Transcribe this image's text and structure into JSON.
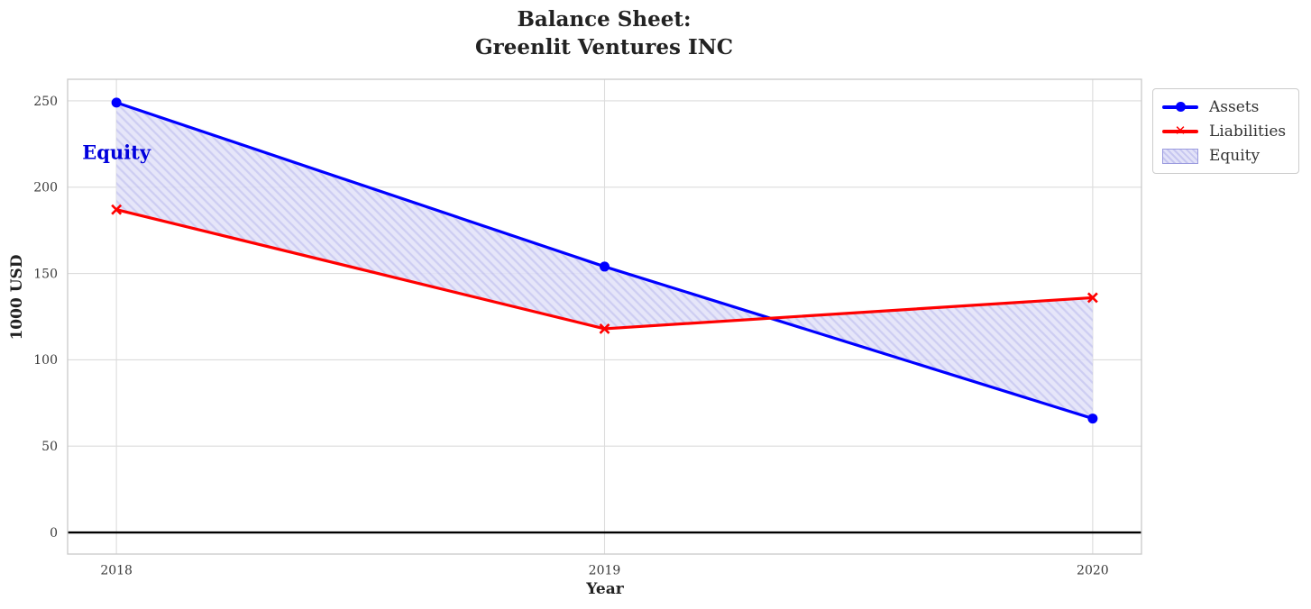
{
  "chart_data": {
    "type": "line",
    "title": "Balance Sheet:\nGreenlit Ventures INC",
    "xlabel": "Year",
    "ylabel": "1000 USD",
    "x": [
      2018,
      2019,
      2020
    ],
    "xticklabels": [
      "2018",
      "2019",
      "2020"
    ],
    "series": [
      {
        "name": "Assets",
        "values": [
          249,
          154,
          66
        ],
        "color": "#0000ff",
        "marker": "circle"
      },
      {
        "name": "Liabilities",
        "values": [
          187,
          118,
          136
        ],
        "color": "#ff0000",
        "marker": "x"
      }
    ],
    "fill_between": {
      "name": "Equity",
      "between": [
        "Assets",
        "Liabilities"
      ],
      "facecolor": "#e2e2f8",
      "hatchcolor": "#c6c6f0",
      "hatch": "diagonal"
    },
    "yticks": [
      0,
      50,
      100,
      150,
      200,
      250
    ],
    "ylim": [
      -12.5,
      262.5
    ],
    "xlim": [
      2017.9,
      2020.1
    ],
    "grid": true,
    "zero_line": {
      "value": 0,
      "color": "#000000"
    },
    "legend": {
      "position": "outside-top-right",
      "items": [
        {
          "label": "Assets",
          "type": "line-circle",
          "color": "#0000ff"
        },
        {
          "label": "Liabilities",
          "type": "line-x",
          "color": "#ff0000"
        },
        {
          "label": "Equity",
          "type": "hatch-patch",
          "color": "#e2e2f8"
        }
      ]
    },
    "annotation": {
      "text": "Equity",
      "x": 2018,
      "y": 220,
      "color": "#0000dd"
    }
  },
  "colors": {
    "grid": "#dcdcdc",
    "spine": "#c9c9c9",
    "tick_label": "#3a3a3a",
    "title": "#222222",
    "figure_background": "#ffffff"
  }
}
